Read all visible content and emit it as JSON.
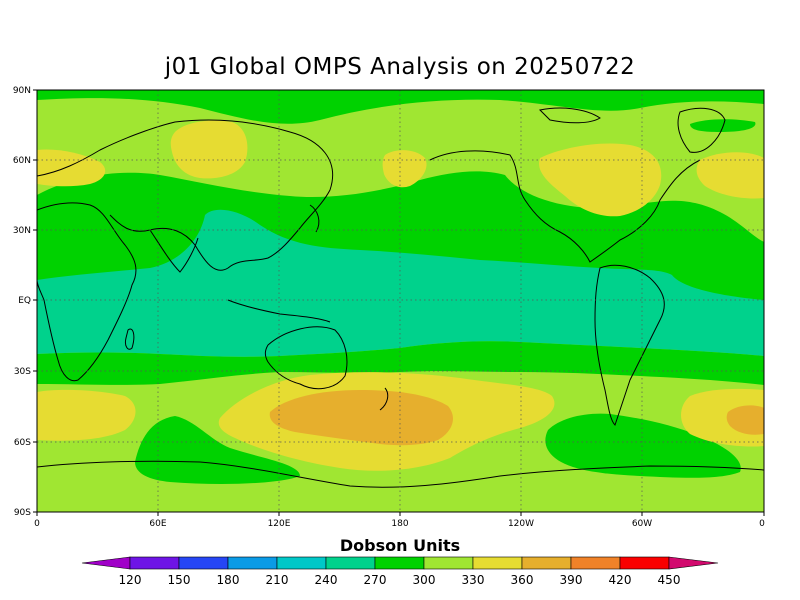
{
  "title": "j01 Global OMPS Analysis on 20250722",
  "lat_ticks": [
    "90N",
    "60N",
    "30N",
    "EQ",
    "30S",
    "60S",
    "90S"
  ],
  "lon_ticks": [
    "0",
    "60E",
    "120E",
    "180",
    "120W",
    "60W",
    "0"
  ],
  "colorbar": {
    "title": "Dobson Units",
    "labels": [
      "120",
      "150",
      "180",
      "210",
      "240",
      "270",
      "300",
      "330",
      "360",
      "390",
      "420",
      "450"
    ],
    "colors": [
      "#a000c8",
      "#6e14e6",
      "#2646f5",
      "#0a9be6",
      "#00c8c8",
      "#00d28c",
      "#00d200",
      "#a0e632",
      "#e6dc32",
      "#e6af2d",
      "#f08228",
      "#fa0000",
      "#d20a6e"
    ]
  },
  "map_colors": {
    "c270": "#00d28c",
    "c300": "#00d200",
    "c330": "#a0e632",
    "c360": "#e6dc32",
    "c390": "#e6af2d"
  }
}
